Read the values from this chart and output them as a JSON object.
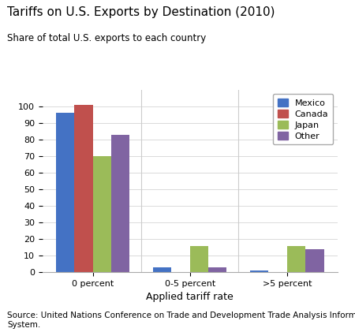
{
  "title": "Tariffs on U.S. Exports by Destination (2010)",
  "subtitle": "Share of total U.S. exports to each country",
  "xlabel": "Applied tariff rate",
  "categories": [
    "0 percent",
    "0-5 percent",
    ">5 percent"
  ],
  "series": {
    "Mexico": [
      96,
      3,
      1
    ],
    "Canada": [
      101,
      0,
      0
    ],
    "Japan": [
      70,
      16,
      16
    ],
    "Other": [
      83,
      3,
      14
    ]
  },
  "colors": {
    "Mexico": "#4472C4",
    "Canada": "#C0504D",
    "Japan": "#9BBB59",
    "Other": "#8064A2"
  },
  "ylim": [
    0,
    110
  ],
  "yticks": [
    0,
    10,
    20,
    30,
    40,
    50,
    60,
    70,
    80,
    90,
    100
  ],
  "source": "Source: United Nations Conference on Trade and Development Trade Analysis Information\nSystem.",
  "bar_width": 0.19,
  "legend_order": [
    "Mexico",
    "Canada",
    "Japan",
    "Other"
  ],
  "title_fontsize": 11,
  "subtitle_fontsize": 8.5,
  "tick_fontsize": 8,
  "xlabel_fontsize": 9,
  "source_fontsize": 7.5
}
